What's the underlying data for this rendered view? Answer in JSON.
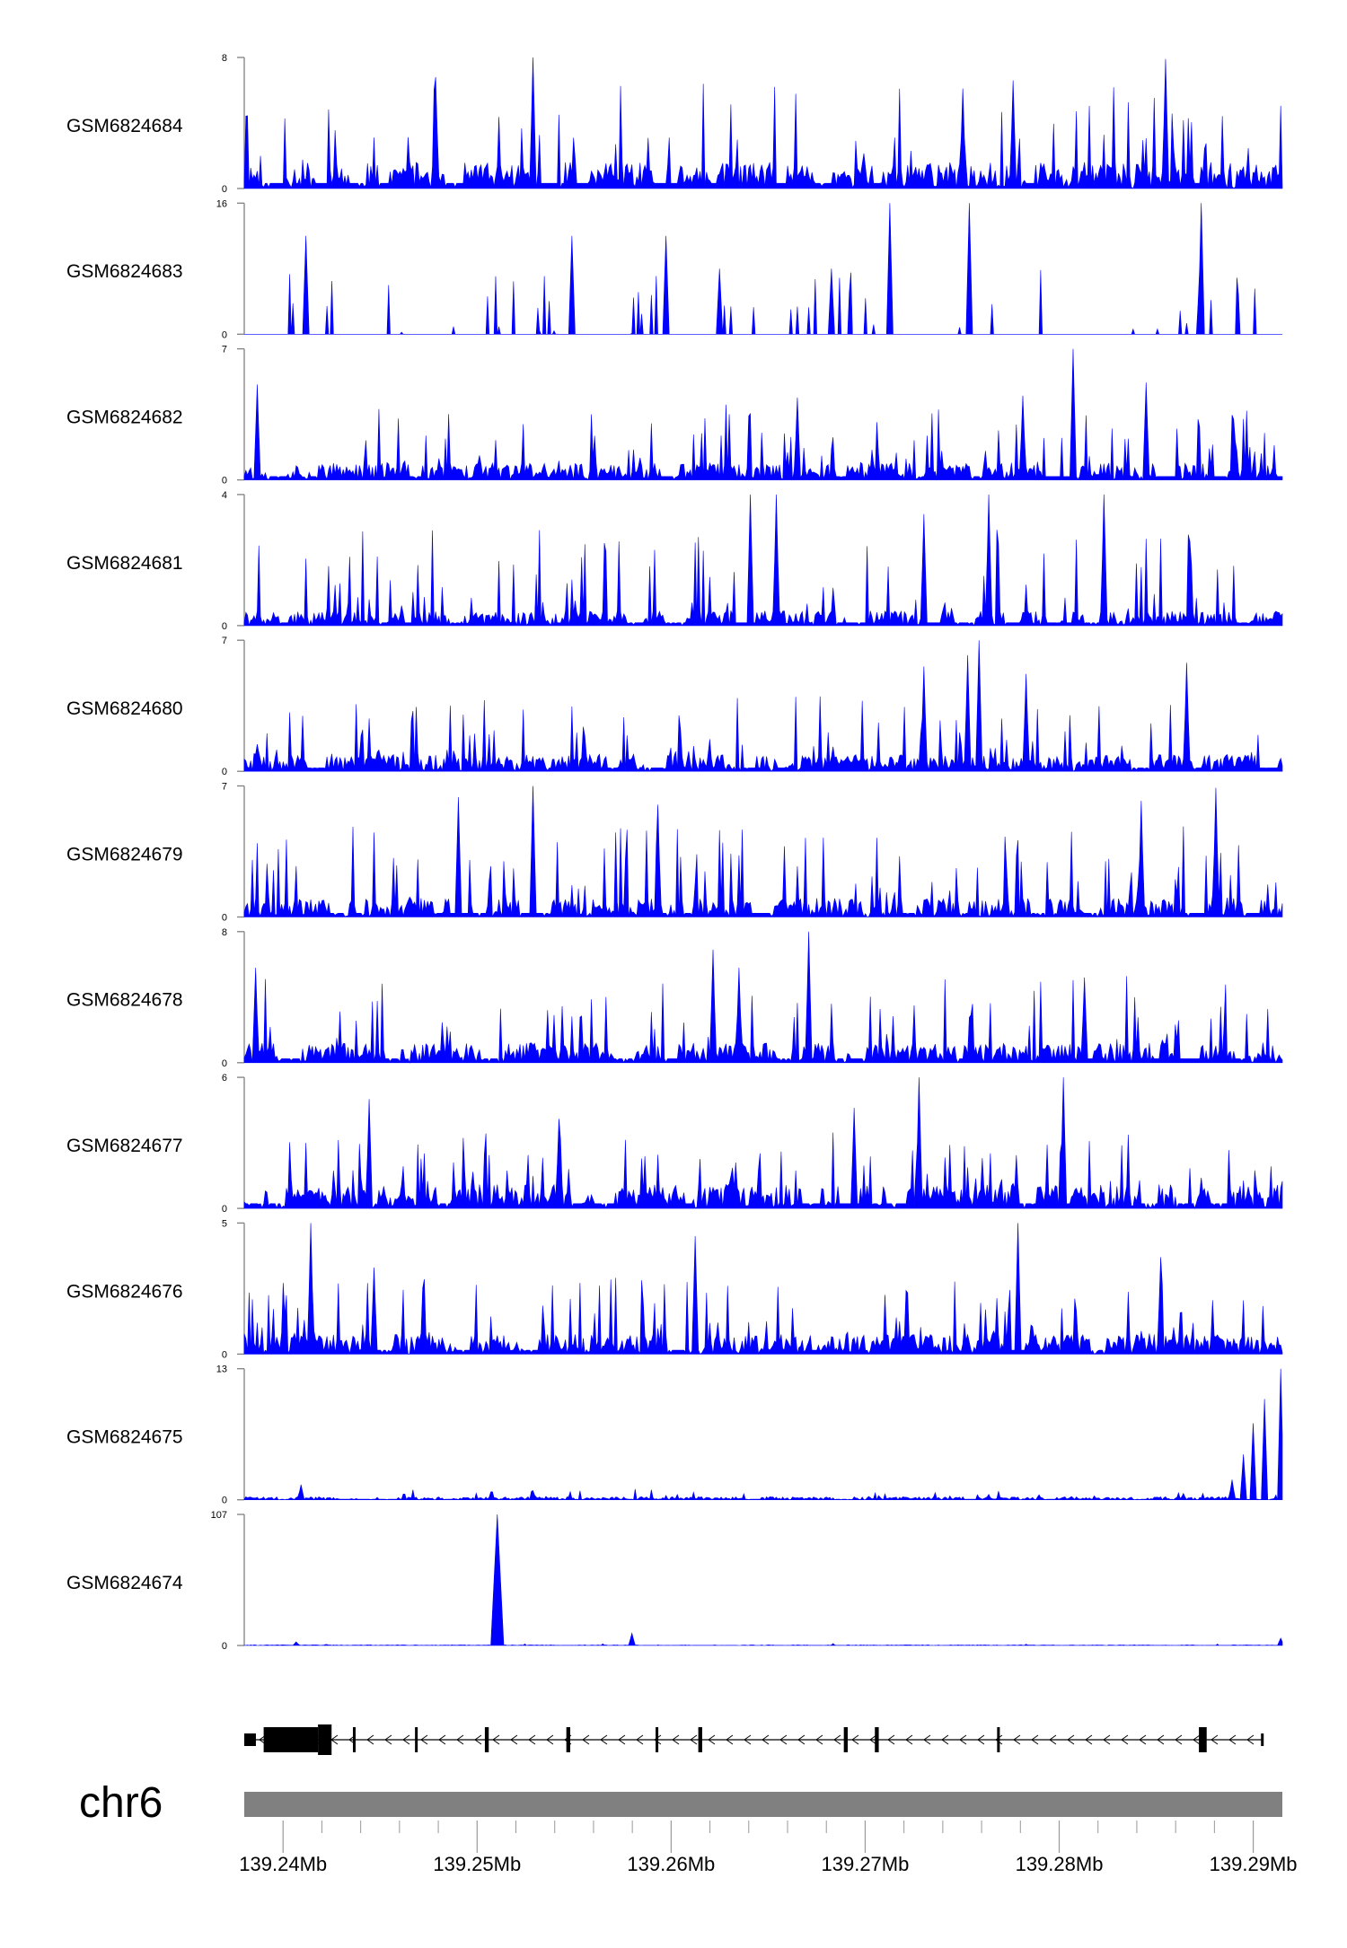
{
  "chart_data": {
    "type": "area",
    "genome": {
      "chromosome": "chr6",
      "x_range": [
        139.238,
        139.2915
      ],
      "x_unit": "Mb",
      "x_ticks": [
        139.24,
        139.25,
        139.26,
        139.27,
        139.28,
        139.29
      ],
      "x_tick_labels": [
        "139.24Mb",
        "139.25Mb",
        "139.26Mb",
        "139.27Mb",
        "139.28Mb",
        "139.29Mb"
      ],
      "minor_ticks": [
        139.242,
        139.244,
        139.246,
        139.248,
        139.252,
        139.254,
        139.256,
        139.258,
        139.262,
        139.264,
        139.266,
        139.268,
        139.272,
        139.274,
        139.276,
        139.278,
        139.282,
        139.284,
        139.286,
        139.288
      ]
    },
    "fill_color": "#0000ff",
    "ideogram_color": "#808080",
    "tracks": [
      {
        "name": "GSM6824684",
        "ymax_label": "8",
        "ymin_label": "0",
        "ylim": [
          0,
          8
        ],
        "seed": 11,
        "base": 1.6,
        "spike_density": 0.14,
        "spike_max": 5.6,
        "peaks": [
          [
            139.2529,
            8
          ],
          [
            139.2479,
            6.8
          ],
          [
            139.2855,
            7.9
          ],
          [
            139.2776,
            6.6
          ],
          [
            139.275,
            6.1
          ]
        ]
      },
      {
        "name": "GSM6824683",
        "ymax_label": "16",
        "ymin_label": "0",
        "ylim": [
          0,
          16
        ],
        "seed": 23,
        "base": 0.0,
        "spike_density": 0.08,
        "spike_max": 8.0,
        "peaks": [
          [
            139.2713,
            16
          ],
          [
            139.2754,
            16
          ],
          [
            139.2873,
            16
          ],
          [
            139.2412,
            12
          ],
          [
            139.2549,
            12
          ],
          [
            139.2597,
            12
          ],
          [
            139.2625,
            8
          ],
          [
            139.2683,
            8
          ]
        ]
      },
      {
        "name": "GSM6824682",
        "ymax_label": "7",
        "ymin_label": "0",
        "ylim": [
          0,
          7
        ],
        "seed": 37,
        "base": 0.9,
        "spike_density": 0.17,
        "spike_max": 3.6,
        "peaks": [
          [
            139.2807,
            7
          ],
          [
            139.2781,
            4.5
          ],
          [
            139.2665,
            4.4
          ],
          [
            139.2845,
            5.2
          ],
          [
            139.2387,
            5.1
          ]
        ]
      },
      {
        "name": "GSM6824681",
        "ymax_label": "4",
        "ymin_label": "0",
        "ylim": [
          0,
          4
        ],
        "seed": 41,
        "base": 0.45,
        "spike_density": 0.18,
        "spike_max": 2.7,
        "peaks": [
          [
            139.2641,
            4
          ],
          [
            139.2654,
            4
          ],
          [
            139.2764,
            4
          ],
          [
            139.2823,
            4
          ],
          [
            139.273,
            3.4
          ]
        ]
      },
      {
        "name": "GSM6824680",
        "ymax_label": "7",
        "ymin_label": "0",
        "ylim": [
          0,
          7
        ],
        "seed": 53,
        "base": 0.9,
        "spike_density": 0.18,
        "spike_max": 3.6,
        "peaks": [
          [
            139.2759,
            7
          ],
          [
            139.273,
            5.6
          ],
          [
            139.2783,
            5.2
          ],
          [
            139.2753,
            6.2
          ],
          [
            139.2866,
            5.8
          ]
        ]
      },
      {
        "name": "GSM6824679",
        "ymax_label": "7",
        "ymin_label": "0",
        "ylim": [
          0,
          7
        ],
        "seed": 67,
        "base": 1.0,
        "spike_density": 0.17,
        "spike_max": 4.4,
        "peaks": [
          [
            139.2529,
            7
          ],
          [
            139.2881,
            6.9
          ],
          [
            139.249,
            6.4
          ],
          [
            139.2842,
            6.2
          ],
          [
            139.2593,
            6.0
          ]
        ]
      },
      {
        "name": "GSM6824678",
        "ymax_label": "8",
        "ymin_label": "0",
        "ylim": [
          0,
          8
        ],
        "seed": 71,
        "base": 1.2,
        "spike_density": 0.17,
        "spike_max": 4.8,
        "peaks": [
          [
            139.2671,
            8
          ],
          [
            139.2622,
            6.9
          ],
          [
            139.2635,
            5.8
          ],
          [
            139.2813,
            5.2
          ],
          [
            139.2386,
            5.8
          ]
        ]
      },
      {
        "name": "GSM6824677",
        "ymax_label": "6",
        "ymin_label": "0",
        "ylim": [
          0,
          6
        ],
        "seed": 83,
        "base": 1.1,
        "spike_density": 0.18,
        "spike_max": 3.0,
        "peaks": [
          [
            139.2728,
            6
          ],
          [
            139.2802,
            6
          ],
          [
            139.2444,
            5.0
          ],
          [
            139.2694,
            4.6
          ],
          [
            139.2542,
            4.1
          ]
        ]
      },
      {
        "name": "GSM6824676",
        "ymax_label": "5",
        "ymin_label": "0",
        "ylim": [
          0,
          5
        ],
        "seed": 97,
        "base": 0.75,
        "spike_density": 0.17,
        "spike_max": 2.6,
        "peaks": [
          [
            139.2414,
            5
          ],
          [
            139.2612,
            4.5
          ],
          [
            139.2779,
            5
          ],
          [
            139.2852,
            3.7
          ],
          [
            139.2447,
            3.3
          ]
        ]
      },
      {
        "name": "GSM6824675",
        "ymax_label": "13",
        "ymin_label": "0",
        "ylim": [
          0,
          13
        ],
        "seed": 101,
        "base": 0.3,
        "spike_density": 0.06,
        "spike_max": 1.0,
        "peaks": [
          [
            139.2409,
            1.5
          ],
          [
            139.2914,
            13
          ],
          [
            139.2906,
            10
          ],
          [
            139.29,
            7.6
          ],
          [
            139.2895,
            4.5
          ],
          [
            139.2889,
            2.0
          ]
        ]
      },
      {
        "name": "GSM6824674",
        "ymax_label": "107",
        "ymin_label": "0",
        "ylim": [
          0,
          107
        ],
        "seed": 113,
        "base": 0.5,
        "spike_density": 0.02,
        "spike_max": 1.5,
        "peaks": [
          [
            139.251,
            107
          ],
          [
            139.258,
            10
          ],
          [
            139.2914,
            6
          ],
          [
            139.2407,
            3
          ]
        ]
      }
    ],
    "gene_model": {
      "strand": "-",
      "intron_range": [
        139.238,
        139.2905
      ],
      "exons": [
        {
          "start": 139.238,
          "end": 139.2386,
          "type": "utr"
        },
        {
          "start": 139.239,
          "end": 139.2418,
          "type": "coding"
        },
        {
          "start": 139.2418,
          "end": 139.2425,
          "type": "coding_thick"
        },
        {
          "start": 139.2436,
          "end": 139.2437,
          "type": "coding"
        },
        {
          "start": 139.2468,
          "end": 139.2469,
          "type": "coding"
        },
        {
          "start": 139.2504,
          "end": 139.2506,
          "type": "coding"
        },
        {
          "start": 139.2546,
          "end": 139.2548,
          "type": "coding"
        },
        {
          "start": 139.2592,
          "end": 139.2593,
          "type": "coding"
        },
        {
          "start": 139.2614,
          "end": 139.2616,
          "type": "coding"
        },
        {
          "start": 139.2689,
          "end": 139.2691,
          "type": "coding"
        },
        {
          "start": 139.2705,
          "end": 139.2707,
          "type": "coding"
        },
        {
          "start": 139.2768,
          "end": 139.2769,
          "type": "coding"
        },
        {
          "start": 139.2872,
          "end": 139.2876,
          "type": "coding"
        },
        {
          "start": 139.2904,
          "end": 139.2905,
          "type": "utr"
        }
      ]
    }
  }
}
